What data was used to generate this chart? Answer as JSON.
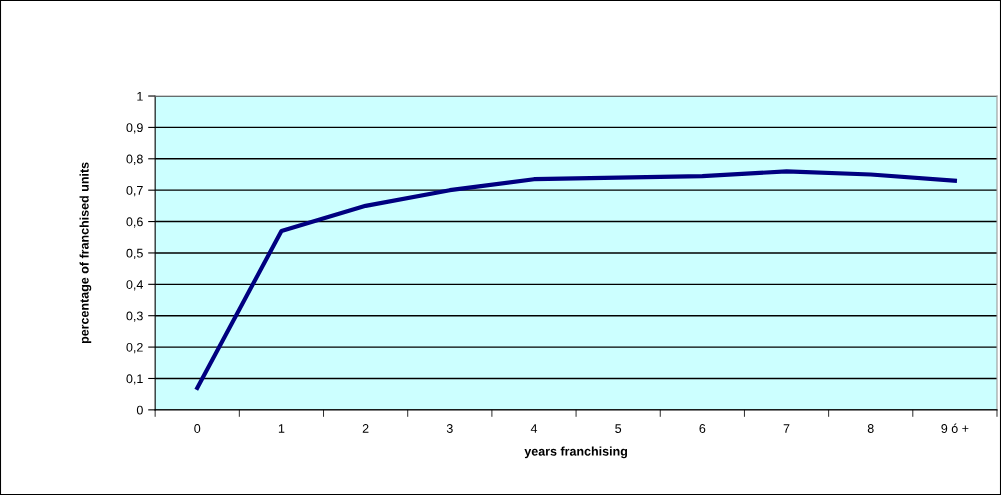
{
  "chart_data": {
    "type": "line",
    "xlabel": "years franchising",
    "ylabel": "percentage of franchised units",
    "categories": [
      "0",
      "1",
      "2",
      "3",
      "4",
      "5",
      "6",
      "7",
      "8",
      "9 ó +"
    ],
    "series": [
      {
        "color": "#000080",
        "values": [
          0.07,
          0.57,
          0.65,
          0.7,
          0.735,
          0.74,
          0.745,
          0.76,
          0.75,
          0.73
        ]
      }
    ],
    "ylim": [
      0,
      1
    ],
    "yticks": [
      0,
      {
        "value": 0.1,
        "label": "0,1"
      },
      {
        "value": 0.2,
        "label": "0,2"
      },
      {
        "value": 0.3,
        "label": "0,3"
      },
      {
        "value": 0.4,
        "label": "0,4"
      },
      {
        "value": 0.5,
        "label": "0,5"
      },
      {
        "value": 0.6,
        "label": "0,6"
      },
      {
        "value": 0.7,
        "label": "0,7"
      },
      {
        "value": 0.8,
        "label": "0,8"
      },
      {
        "value": 0.9,
        "label": "0,9"
      },
      1
    ],
    "grid": "y",
    "legend": false,
    "marker": "none",
    "line_style": "solid"
  }
}
